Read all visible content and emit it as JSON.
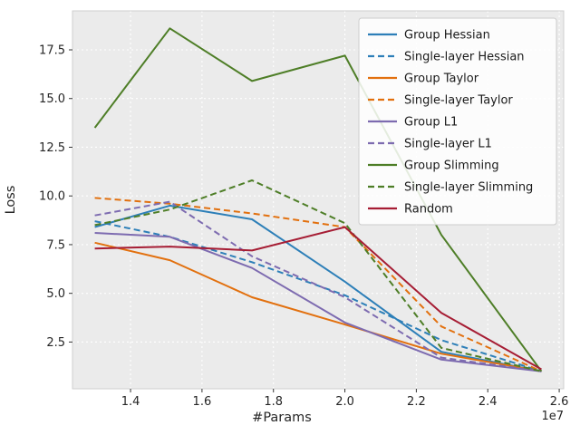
{
  "chart_data": {
    "type": "line",
    "title": "",
    "xlabel": "#Params",
    "ylabel": "Loss",
    "x_offset_label": "1e7",
    "x": [
      13000000,
      15100000,
      17400000,
      20000000,
      22700000,
      25500000
    ],
    "xlim": [
      12375000,
      26125000
    ],
    "ylim": [
      0.1,
      19.5
    ],
    "xticks": [
      14000000,
      16000000,
      18000000,
      20000000,
      22000000,
      24000000,
      26000000
    ],
    "yticks": [
      2.5,
      5.0,
      7.5,
      10.0,
      12.5,
      15.0,
      17.5
    ],
    "grid": true,
    "legend_position": "upper right",
    "series": [
      {
        "name": "Group Hessian",
        "color": "#2d7fb8",
        "dash": "solid",
        "values": [
          8.4,
          9.5,
          8.8,
          5.6,
          2.0,
          1.0
        ]
      },
      {
        "name": "Single-layer Hessian",
        "color": "#2d7fb8",
        "dash": "dashed",
        "values": [
          8.7,
          7.9,
          6.6,
          4.9,
          2.6,
          1.0
        ]
      },
      {
        "name": "Group Taylor",
        "color": "#e2700e",
        "dash": "solid",
        "values": [
          7.6,
          6.7,
          4.8,
          3.4,
          1.9,
          1.0
        ]
      },
      {
        "name": "Single-layer Taylor",
        "color": "#e2700e",
        "dash": "dashed",
        "values": [
          9.9,
          9.6,
          9.1,
          8.4,
          3.3,
          1.0
        ]
      },
      {
        "name": "Group L1",
        "color": "#7d6bb0",
        "dash": "solid",
        "values": [
          8.1,
          7.9,
          6.3,
          3.5,
          1.6,
          1.0
        ]
      },
      {
        "name": "Single-layer L1",
        "color": "#7d6bb0",
        "dash": "dashed",
        "values": [
          9.0,
          9.7,
          6.9,
          4.8,
          1.7,
          1.0
        ]
      },
      {
        "name": "Group Slimming",
        "color": "#4e7e27",
        "dash": "solid",
        "values": [
          13.5,
          18.6,
          15.9,
          17.2,
          8.0,
          1.0
        ]
      },
      {
        "name": "Single-layer Slimming",
        "color": "#4e7e27",
        "dash": "dashed",
        "values": [
          8.5,
          9.3,
          10.8,
          8.6,
          2.2,
          1.0
        ]
      },
      {
        "name": "Random",
        "color": "#a61d34",
        "dash": "solid",
        "values": [
          7.3,
          7.4,
          7.2,
          8.4,
          4.0,
          1.1
        ]
      }
    ],
    "style": {
      "figure_bg": "#ffffff",
      "plot_bg": "#ebebeb",
      "grid_color": "#ffffff",
      "frame_color": "#cfcfcf",
      "tick_color": "#262626",
      "tick_mark_color": "#333333",
      "legend_bg": "#ffffff",
      "legend_border": "#cccccc",
      "legend_text_color": "#1a1a1a"
    }
  }
}
